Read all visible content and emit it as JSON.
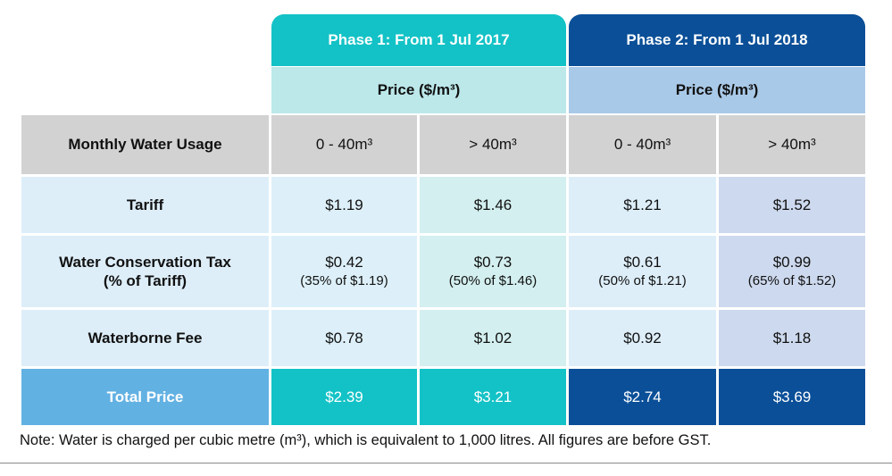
{
  "phase1": {
    "header": "Phase 1: From 1 Jul 2017",
    "price_label": "Price ($/m³)"
  },
  "phase2": {
    "header": "Phase 2: From 1 Jul 2018",
    "price_label": "Price ($/m³)"
  },
  "usage_row": {
    "label": "Monthly Water Usage",
    "bands": [
      "0 - 40m³",
      "> 40m³",
      "0 - 40m³",
      "> 40m³"
    ]
  },
  "rows": [
    {
      "label": "Tariff",
      "values": [
        "$1.19",
        "$1.46",
        "$1.21",
        "$1.52"
      ]
    },
    {
      "label": "Water Conservation Tax",
      "label_sub": "(% of Tariff)",
      "values": [
        "$0.42",
        "$0.73",
        "$0.61",
        "$0.99"
      ],
      "notes": [
        "(35% of $1.19)",
        "(50% of $1.46)",
        "(50% of $1.21)",
        "(65% of $1.52)"
      ]
    },
    {
      "label": "Waterborne Fee",
      "values": [
        "$0.78",
        "$1.02",
        "$0.92",
        "$1.18"
      ]
    }
  ],
  "total": {
    "label": "Total Price",
    "values": [
      "$2.39",
      "$3.21",
      "$2.74",
      "$3.69"
    ]
  },
  "footnote": "Note: Water is charged per cubic metre (m³), which is equivalent to 1,000 litres. All figures are before GST.",
  "colors": {
    "phase1_accent": "#12c2c6",
    "phase2_accent": "#0a4f98",
    "total_label": "#62b1e3"
  }
}
